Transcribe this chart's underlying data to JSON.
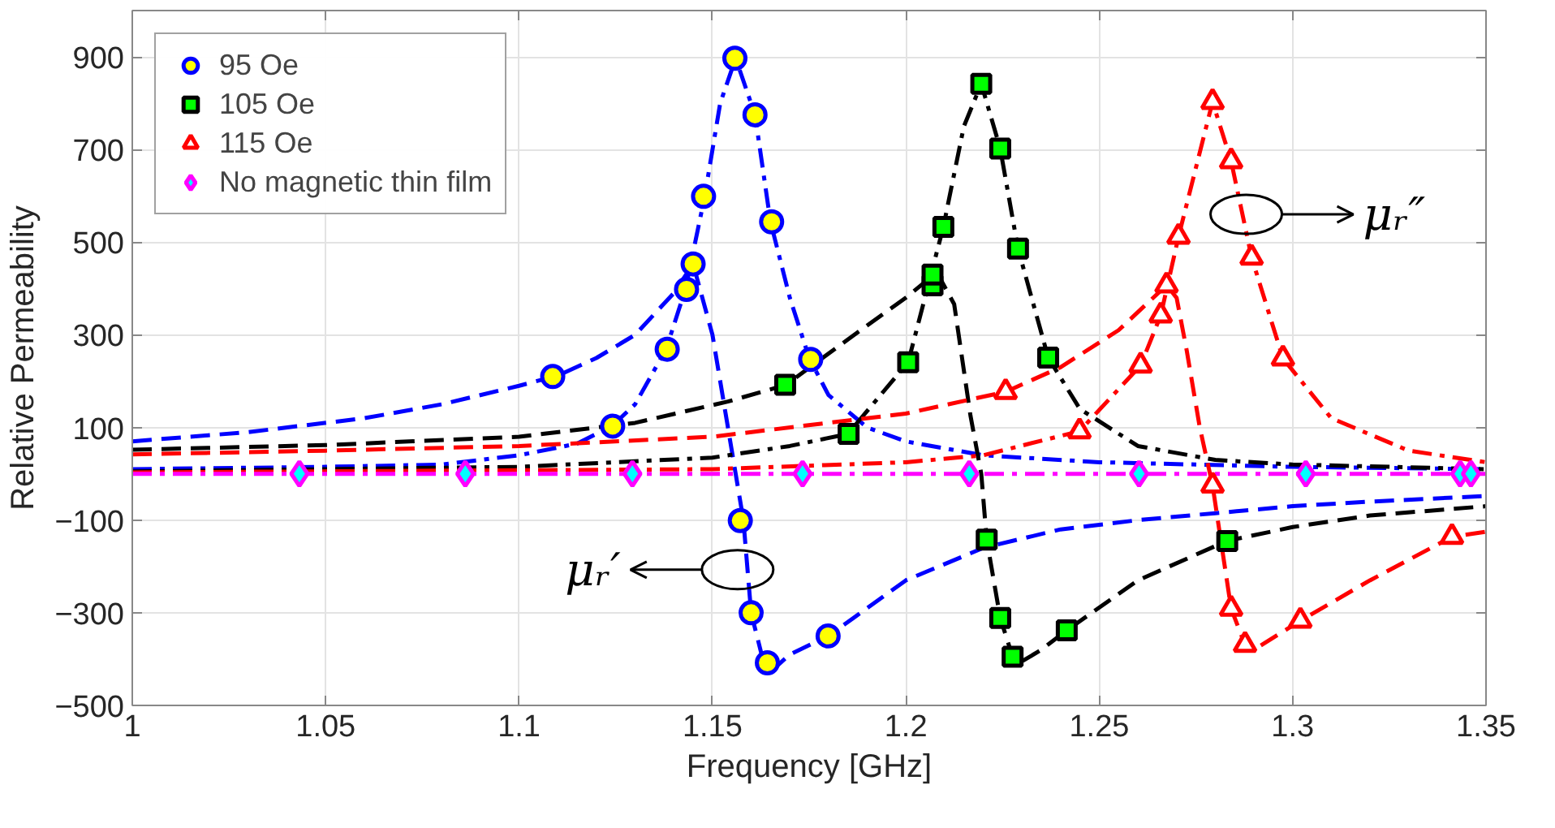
{
  "chart_data": {
    "type": "scatter",
    "xlabel": "Frequency [GHz]",
    "ylabel": "Relative Permeability",
    "xlim": [
      1,
      1.35
    ],
    "xticks": [
      1,
      1.05,
      1.1,
      1.15,
      1.2,
      1.25,
      1.3,
      1.35
    ],
    "ylim": [
      -500,
      1000
    ],
    "yticks": [
      -500,
      -300,
      -100,
      100,
      300,
      500,
      700,
      900
    ],
    "grid": true,
    "legend": "top left",
    "annotations": [
      {
        "text": "μᵣ″",
        "x": 1.288,
        "y": 560
      },
      {
        "text": "μᵣ′",
        "x": 1.1565,
        "y": -207
      }
    ],
    "series": [
      {
        "type": "line",
        "color": "#0000ff",
        "line_style": "dashed",
        "x": [
          1.0,
          1.03,
          1.06,
          1.08,
          1.1,
          1.11,
          1.12,
          1.13,
          1.14,
          1.145,
          1.15,
          1.153,
          1.156,
          1.158,
          1.16,
          1.163,
          1.166,
          1.17,
          1.18,
          1.19,
          1.2,
          1.22,
          1.24,
          1.26,
          1.28,
          1.3,
          1.32,
          1.35
        ],
        "values": [
          70,
          90,
          120,
          150,
          190,
          212,
          250,
          300,
          390,
          453,
          300,
          150,
          0,
          -100,
          -300,
          -400,
          -420,
          -390,
          -350,
          -290,
          -230,
          -160,
          -120,
          -100,
          -85,
          -70,
          -60,
          -48
        ]
      },
      {
        "type": "line",
        "color": "#0000ff",
        "line_style": "dashdot",
        "x": [
          1.0,
          1.05,
          1.08,
          1.1,
          1.115,
          1.124,
          1.13,
          1.138,
          1.143,
          1.148,
          1.152,
          1.156,
          1.161,
          1.165,
          1.17,
          1.175,
          1.18,
          1.19,
          1.2,
          1.22,
          1.25,
          1.3,
          1.35
        ],
        "values": [
          10,
          15,
          20,
          40,
          65,
          103,
          150,
          269,
          398,
          599,
          800,
          897,
          775,
          544,
          380,
          250,
          170,
          100,
          70,
          40,
          25,
          15,
          10
        ]
      },
      {
        "type": "line",
        "color": "#000000",
        "line_style": "dashed",
        "x": [
          1.0,
          1.05,
          1.1,
          1.13,
          1.154,
          1.169,
          1.185,
          1.2,
          1.208,
          1.2125,
          1.2167,
          1.2195,
          1.2209,
          1.2244,
          1.2276,
          1.229,
          1.235,
          1.2416,
          1.26,
          1.283,
          1.3,
          1.32,
          1.35
        ],
        "values": [
          52,
          62,
          80,
          110,
          156,
          192,
          290,
          380,
          435,
          366,
          126,
          0,
          -142,
          -311,
          -395,
          -410,
          -380,
          -338,
          -230,
          -145,
          -115,
          -90,
          -70
        ]
      },
      {
        "type": "line",
        "color": "#000000",
        "line_style": "dashdot",
        "x": [
          1.0,
          1.1,
          1.15,
          1.17,
          1.185,
          1.2006,
          1.2097,
          1.215,
          1.2195,
          1.2244,
          1.229,
          1.2368,
          1.245,
          1.26,
          1.28,
          1.3,
          1.35
        ],
        "values": [
          5,
          15,
          35,
          60,
          86,
          241,
          533,
          750,
          842,
          702,
          486,
          251,
          140,
          60,
          30,
          20,
          10
        ]
      },
      {
        "type": "line",
        "color": "#ff0000",
        "line_style": "dashed",
        "x": [
          1.0,
          1.05,
          1.1,
          1.15,
          1.2,
          1.2258,
          1.24,
          1.255,
          1.2674,
          1.27,
          1.2726,
          1.276,
          1.2793,
          1.2841,
          1.2877,
          1.29,
          1.302,
          1.32,
          1.3412,
          1.35
        ],
        "values": [
          42,
          50,
          60,
          80,
          130,
          177,
          230,
          310,
          407,
          380,
          267,
          100,
          -25,
          -291,
          -369,
          -380,
          -317,
          -230,
          -136,
          -125
        ]
      },
      {
        "type": "line",
        "color": "#ff0000",
        "line_style": "dashdot",
        "x": [
          1.0,
          1.15,
          1.2,
          1.22,
          1.2449,
          1.2607,
          1.2659,
          1.2705,
          1.2793,
          1.2841,
          1.2894,
          1.2975,
          1.31,
          1.33,
          1.35
        ],
        "values": [
          3,
          10,
          25,
          40,
          92,
          234,
          342,
          512,
          803,
          675,
          467,
          249,
          120,
          50,
          25
        ]
      },
      {
        "type": "line",
        "color": "#ff00ff",
        "line_style": "dashdot",
        "x": [
          1.0,
          1.35
        ],
        "values": [
          0,
          0
        ]
      },
      {
        "name": "95 Oe",
        "color": "#0000ff",
        "marker": "circle",
        "x": [
          1.1087,
          1.1242,
          1.1383,
          1.1433,
          1.145,
          1.1477,
          1.1558,
          1.161,
          1.1653,
          1.1754,
          1.1572,
          1.16,
          1.1642,
          1.1799
        ],
        "values": [
          210,
          103,
          269,
          398,
          453,
          599,
          897,
          775,
          544,
          247,
          -101,
          -300,
          -408,
          -350
        ]
      },
      {
        "name": "105 Oe",
        "color": "#000000",
        "marker": "square",
        "x": [
          1.1688,
          1.1852,
          1.2006,
          1.2069,
          1.2069,
          1.2097,
          1.2195,
          1.2244,
          1.229,
          1.2368,
          1.2209,
          1.2244,
          1.2276,
          1.2416,
          1.2831
        ],
        "values": [
          192,
          86,
          241,
          407,
          430,
          533,
          842,
          702,
          486,
          251,
          -142,
          -311,
          -395,
          -338,
          -145
        ]
      },
      {
        "name": "115 Oe",
        "color": "#ff0000",
        "marker": "triangle",
        "x": [
          1.2258,
          1.2449,
          1.2607,
          1.2659,
          1.2674,
          1.2705,
          1.2793,
          1.2841,
          1.2894,
          1.2975,
          1.2793,
          1.2841,
          1.2877,
          1.302,
          1.3412
        ],
        "values": [
          177,
          92,
          234,
          342,
          407,
          512,
          803,
          675,
          467,
          249,
          -25,
          -291,
          -369,
          -317,
          -136
        ]
      },
      {
        "name": "No magnetic thin film",
        "color": "#ff00ff",
        "marker": "diamond",
        "x": [
          1.0432,
          1.0861,
          1.1293,
          1.1733,
          1.2164,
          1.2603,
          1.3034,
          1.3433,
          1.3461
        ],
        "values": [
          0,
          0,
          0,
          0,
          0,
          0,
          0,
          0,
          0
        ]
      }
    ]
  }
}
